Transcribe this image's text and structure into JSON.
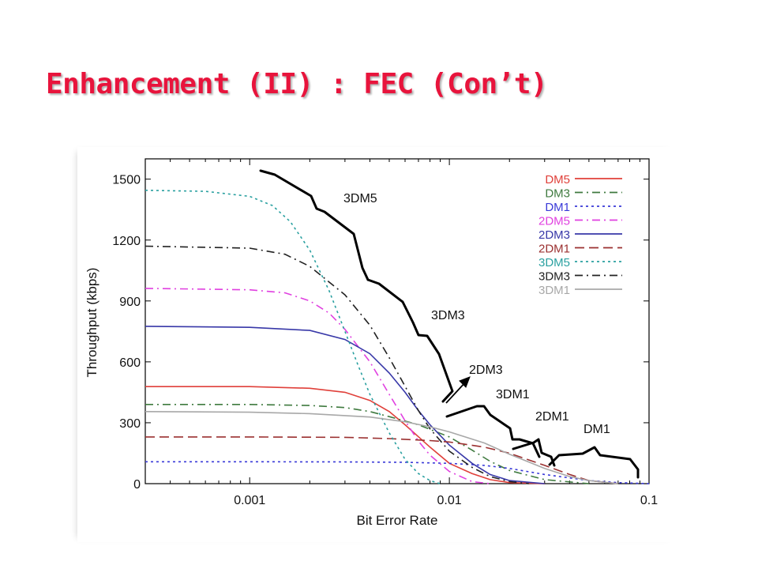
{
  "title": "Enhancement (II) : FEC (Con’t)",
  "chart_data": {
    "type": "line",
    "x_scale": "log",
    "xlabel": "Bit Error Rate",
    "ylabel": "Throughput (kbps)",
    "xlim": [
      0.0003,
      0.1
    ],
    "ylim": [
      0,
      1600
    ],
    "xticks": [
      {
        "value": 0.001,
        "label": "0.001"
      },
      {
        "value": 0.01,
        "label": "0.01"
      },
      {
        "value": 0.1,
        "label": "0.1"
      }
    ],
    "yticks": [
      {
        "value": 0,
        "label": "0"
      },
      {
        "value": 300,
        "label": "300"
      },
      {
        "value": 600,
        "label": "600"
      },
      {
        "value": 900,
        "label": "900"
      },
      {
        "value": 1200,
        "label": "1200"
      },
      {
        "value": 1500,
        "label": "1500"
      }
    ],
    "grid": false,
    "legend_position": "top-right",
    "series": [
      {
        "name": "DM5",
        "color": "#e0403a",
        "dash": "solid",
        "values": [
          [
            0.0003,
            478
          ],
          [
            0.001,
            478
          ],
          [
            0.002,
            470
          ],
          [
            0.003,
            450
          ],
          [
            0.004,
            410
          ],
          [
            0.005,
            355
          ],
          [
            0.006,
            290
          ],
          [
            0.008,
            180
          ],
          [
            0.01,
            100
          ],
          [
            0.013,
            50
          ],
          [
            0.016,
            20
          ],
          [
            0.02,
            5
          ],
          [
            0.03,
            0
          ]
        ]
      },
      {
        "name": "DM3",
        "color": "#3f7a3f",
        "dash": "dashdot",
        "values": [
          [
            0.0003,
            390
          ],
          [
            0.001,
            390
          ],
          [
            0.002,
            385
          ],
          [
            0.003,
            375
          ],
          [
            0.004,
            355
          ],
          [
            0.005,
            330
          ],
          [
            0.007,
            290
          ],
          [
            0.01,
            230
          ],
          [
            0.013,
            165
          ],
          [
            0.016,
            110
          ],
          [
            0.02,
            65
          ],
          [
            0.03,
            20
          ],
          [
            0.05,
            0
          ]
        ]
      },
      {
        "name": "DM1",
        "color": "#3a3ad8",
        "dash": "dotted",
        "values": [
          [
            0.0003,
            108
          ],
          [
            0.001,
            108
          ],
          [
            0.003,
            107
          ],
          [
            0.006,
            105
          ],
          [
            0.01,
            100
          ],
          [
            0.015,
            90
          ],
          [
            0.02,
            75
          ],
          [
            0.03,
            45
          ],
          [
            0.05,
            15
          ],
          [
            0.07,
            5
          ],
          [
            0.1,
            0
          ]
        ]
      },
      {
        "name": "2DM5",
        "color": "#e040e0",
        "dash": "dashdot",
        "values": [
          [
            0.0003,
            962
          ],
          [
            0.001,
            955
          ],
          [
            0.0015,
            940
          ],
          [
            0.002,
            900
          ],
          [
            0.0025,
            840
          ],
          [
            0.003,
            760
          ],
          [
            0.004,
            600
          ],
          [
            0.005,
            440
          ],
          [
            0.006,
            310
          ],
          [
            0.007,
            210
          ],
          [
            0.008,
            140
          ],
          [
            0.01,
            60
          ],
          [
            0.013,
            10
          ],
          [
            0.016,
            0
          ]
        ]
      },
      {
        "name": "2DM3",
        "color": "#3838a8",
        "dash": "solid",
        "values": [
          [
            0.0003,
            775
          ],
          [
            0.001,
            770
          ],
          [
            0.002,
            755
          ],
          [
            0.003,
            710
          ],
          [
            0.004,
            640
          ],
          [
            0.005,
            545
          ],
          [
            0.006,
            450
          ],
          [
            0.007,
            360
          ],
          [
            0.008,
            290
          ],
          [
            0.01,
            190
          ],
          [
            0.013,
            100
          ],
          [
            0.016,
            45
          ],
          [
            0.02,
            15
          ],
          [
            0.03,
            0
          ]
        ]
      },
      {
        "name": "2DM1",
        "color": "#9b3030",
        "dash": "dashed",
        "values": [
          [
            0.0003,
            230
          ],
          [
            0.001,
            230
          ],
          [
            0.003,
            228
          ],
          [
            0.005,
            222
          ],
          [
            0.008,
            212
          ],
          [
            0.01,
            205
          ],
          [
            0.015,
            180
          ],
          [
            0.02,
            150
          ],
          [
            0.03,
            90
          ],
          [
            0.04,
            45
          ],
          [
            0.05,
            15
          ],
          [
            0.07,
            0
          ]
        ]
      },
      {
        "name": "3DM5",
        "color": "#2aa0a0",
        "dash": "dotted",
        "values": [
          [
            0.0003,
            1445
          ],
          [
            0.0006,
            1440
          ],
          [
            0.001,
            1415
          ],
          [
            0.0013,
            1370
          ],
          [
            0.0016,
            1290
          ],
          [
            0.002,
            1150
          ],
          [
            0.0025,
            950
          ],
          [
            0.003,
            750
          ],
          [
            0.0035,
            580
          ],
          [
            0.004,
            440
          ],
          [
            0.005,
            250
          ],
          [
            0.006,
            120
          ],
          [
            0.007,
            50
          ],
          [
            0.008,
            15
          ],
          [
            0.009,
            0
          ]
        ]
      },
      {
        "name": "3DM3",
        "color": "#222222",
        "dash": "dashdot",
        "values": [
          [
            0.0003,
            1170
          ],
          [
            0.001,
            1160
          ],
          [
            0.0015,
            1130
          ],
          [
            0.002,
            1070
          ],
          [
            0.003,
            930
          ],
          [
            0.004,
            780
          ],
          [
            0.005,
            620
          ],
          [
            0.006,
            480
          ],
          [
            0.007,
            360
          ],
          [
            0.008,
            270
          ],
          [
            0.01,
            160
          ],
          [
            0.013,
            80
          ],
          [
            0.016,
            35
          ],
          [
            0.02,
            10
          ],
          [
            0.025,
            0
          ]
        ]
      },
      {
        "name": "3DM1",
        "color": "#a8a8a8",
        "dash": "solid",
        "values": [
          [
            0.0003,
            355
          ],
          [
            0.001,
            352
          ],
          [
            0.002,
            345
          ],
          [
            0.004,
            328
          ],
          [
            0.006,
            305
          ],
          [
            0.008,
            280
          ],
          [
            0.01,
            255
          ],
          [
            0.015,
            200
          ],
          [
            0.02,
            145
          ],
          [
            0.03,
            75
          ],
          [
            0.04,
            35
          ],
          [
            0.05,
            15
          ],
          [
            0.07,
            0
          ]
        ]
      }
    ],
    "annotations": [
      {
        "label": "3DM5"
      },
      {
        "label": "3DM3"
      },
      {
        "label": "2DM3"
      },
      {
        "label": "3DM1"
      },
      {
        "label": "2DM1"
      },
      {
        "label": "DM1"
      }
    ]
  }
}
